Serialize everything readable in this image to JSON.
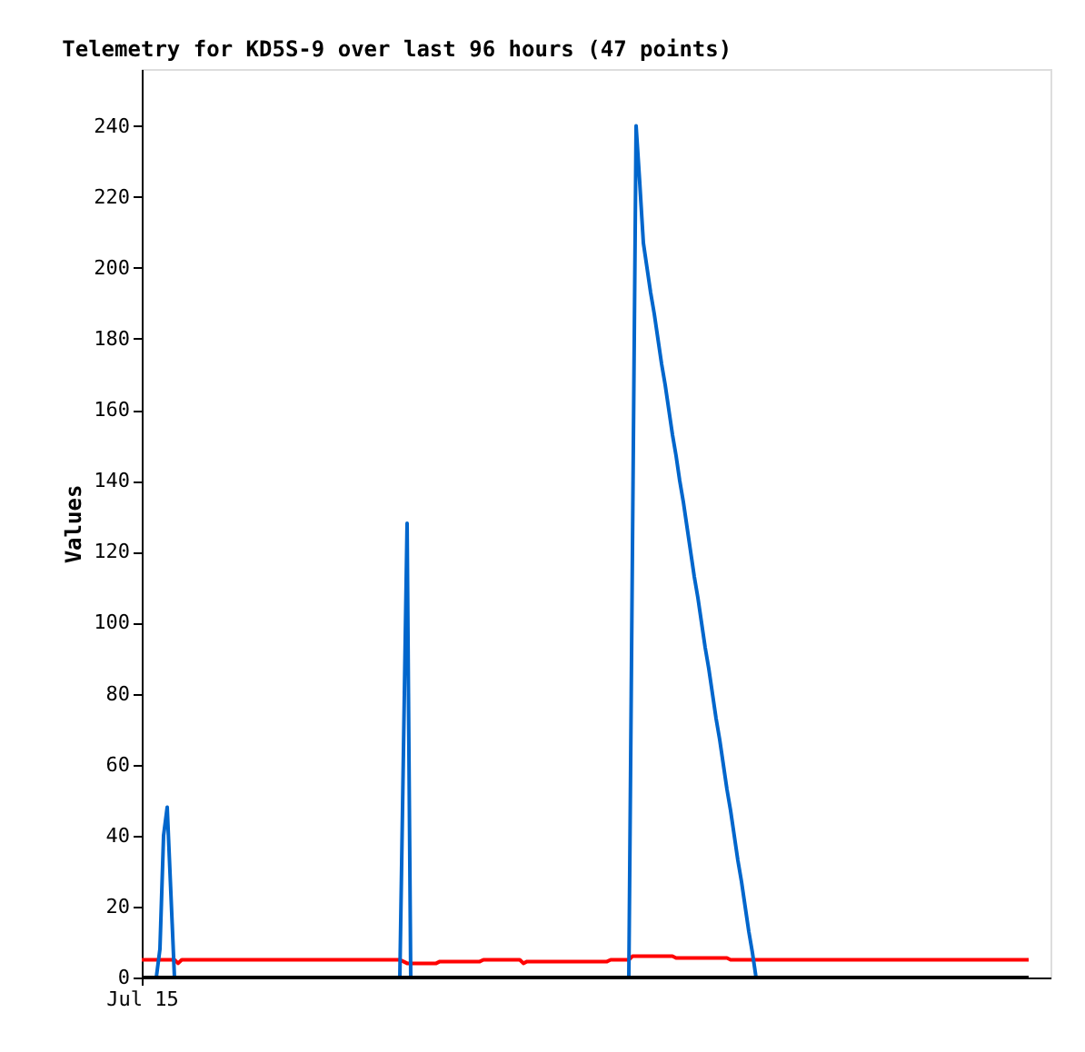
{
  "chart_data": {
    "type": "line",
    "title": "Telemetry for KD5S-9 over last 96 hours (47 points)",
    "ylabel": "Values",
    "categories": [
      "Jul 15",
      null,
      null,
      null,
      null,
      null,
      null,
      null,
      null,
      null,
      null,
      null,
      null,
      null,
      null,
      null,
      null,
      null,
      null,
      null,
      null,
      null,
      null,
      null,
      null,
      null,
      null,
      null,
      null,
      null,
      null,
      null,
      null,
      null,
      null,
      null,
      null,
      null,
      null,
      null,
      null,
      null,
      null,
      null,
      null,
      null,
      null,
      null,
      null,
      null,
      null,
      null,
      null,
      null,
      null,
      null,
      null,
      null,
      null,
      null,
      null,
      null,
      null,
      null,
      null,
      null,
      null,
      null,
      null,
      null,
      null,
      null,
      null,
      null,
      null,
      null,
      null,
      null,
      null,
      null,
      null,
      null,
      null,
      null,
      null,
      null,
      null,
      null,
      null,
      null,
      null,
      null,
      null,
      null,
      null,
      null,
      null,
      null,
      null,
      null,
      null,
      null,
      null,
      null,
      null,
      null,
      null,
      null,
      null,
      null,
      null,
      null,
      null,
      null,
      null,
      null,
      null,
      null,
      null,
      null,
      null,
      null,
      null,
      null,
      null,
      null,
      null,
      null,
      null,
      null,
      null,
      null,
      null,
      null,
      null,
      null,
      null,
      null,
      null,
      null,
      null,
      null,
      null,
      null,
      null,
      null,
      null,
      null,
      null,
      null,
      null,
      null,
      null,
      null,
      null,
      null,
      null,
      null,
      null,
      null,
      null,
      null,
      null,
      null,
      null,
      null,
      null,
      null,
      null,
      null,
      null,
      null,
      null,
      null,
      null,
      null,
      null,
      null,
      null,
      null,
      null,
      null,
      null,
      null,
      null,
      null,
      null,
      null,
      null,
      null,
      null,
      null,
      null,
      null,
      null,
      null,
      null,
      null,
      null,
      null,
      null,
      null,
      null,
      null,
      null,
      null,
      null,
      null,
      null,
      null,
      null,
      null,
      null,
      null,
      null,
      null,
      null,
      null,
      null,
      null,
      null,
      null,
      null,
      null,
      null,
      null,
      null,
      null,
      null,
      null,
      null,
      null,
      null,
      null,
      null,
      null,
      null,
      null,
      null,
      null,
      null,
      null,
      null,
      null,
      null,
      null,
      null,
      null,
      null,
      null,
      null
    ],
    "ylim": [
      0,
      256
    ],
    "yticks": [
      0,
      20,
      40,
      60,
      80,
      100,
      120,
      140,
      160,
      180,
      200,
      220,
      240
    ],
    "grid": false,
    "marker": "none",
    "line_style": "solid",
    "series": [
      {
        "color": "#000000",
        "values": [
          0,
          0,
          0,
          0,
          0,
          0,
          0,
          0,
          0,
          0,
          0,
          0,
          0,
          0,
          0,
          0,
          0,
          0,
          0,
          0,
          0,
          0,
          0,
          0,
          0,
          0,
          0,
          0,
          0,
          0,
          0,
          0,
          0,
          0,
          0,
          0,
          0,
          0,
          0,
          0,
          0,
          0,
          0,
          0,
          0,
          0,
          0,
          0,
          0,
          0,
          0,
          0,
          0,
          0,
          0,
          0,
          0,
          0,
          0,
          0,
          0,
          0,
          0,
          0,
          0,
          0,
          0,
          0,
          0,
          0,
          0,
          0,
          0,
          0,
          0,
          0,
          0,
          0,
          0,
          0,
          0,
          0,
          0,
          0,
          0,
          0,
          0,
          0,
          0,
          0,
          0,
          0,
          0,
          0,
          0,
          0,
          0,
          0,
          0,
          0,
          0,
          0,
          0,
          0,
          0,
          0,
          0,
          0,
          0,
          0,
          0,
          0,
          0,
          0,
          0,
          0,
          0,
          0,
          0,
          0,
          0,
          0,
          0,
          0,
          0,
          0,
          0,
          0,
          0,
          0,
          0,
          0,
          0,
          0,
          0,
          0,
          0,
          0,
          0,
          0,
          0,
          0,
          0,
          0,
          0,
          0,
          0,
          0,
          0,
          0,
          0,
          0,
          0,
          0,
          0,
          0,
          0,
          0,
          0,
          0,
          0,
          0,
          0,
          0,
          0,
          0,
          0,
          0,
          0,
          0,
          0,
          0,
          0,
          0,
          0,
          0,
          0,
          0,
          0,
          0,
          0,
          0,
          0,
          0,
          0,
          0,
          0,
          0,
          0,
          0,
          0,
          0,
          0,
          0,
          0,
          0,
          0,
          0,
          0,
          0,
          0,
          0,
          0,
          0,
          0,
          0,
          0,
          0,
          0,
          0,
          0,
          0,
          0,
          0,
          0,
          0,
          0,
          0,
          0,
          0,
          0,
          0,
          0,
          0,
          0,
          0,
          0,
          0,
          0,
          0,
          0,
          0,
          0,
          0,
          0,
          0,
          0,
          0,
          0,
          0,
          0,
          0,
          0,
          0,
          0,
          null,
          null,
          null,
          null,
          null,
          null
        ]
      },
      {
        "color": "#ff0000",
        "values": [
          5,
          5,
          5,
          5,
          5,
          5,
          5,
          5,
          5,
          5,
          4,
          5,
          5,
          5,
          5,
          5,
          5,
          5,
          5,
          5,
          5,
          5,
          5,
          5,
          5,
          5,
          5,
          5,
          5,
          5,
          5,
          5,
          5,
          5,
          5,
          5,
          5,
          5,
          5,
          5,
          5,
          5,
          5,
          5,
          5,
          5,
          5,
          5,
          5,
          5,
          5,
          5,
          5,
          5,
          5,
          5,
          5,
          5,
          5,
          5,
          5,
          5,
          5,
          5,
          5,
          5,
          5,
          5,
          5,
          5,
          5,
          5,
          4.5,
          4,
          4,
          4,
          4,
          4,
          4,
          4,
          4,
          4,
          4.5,
          4.5,
          4.5,
          4.5,
          4.5,
          4.5,
          4.5,
          4.5,
          4.5,
          4.5,
          4.5,
          4.5,
          5,
          5,
          5,
          5,
          5,
          5,
          5,
          5,
          5,
          5,
          5,
          4,
          4.5,
          4.5,
          4.5,
          4.5,
          4.5,
          4.5,
          4.5,
          4.5,
          4.5,
          4.5,
          4.5,
          4.5,
          4.5,
          4.5,
          4.5,
          4.5,
          4.5,
          4.5,
          4.5,
          4.5,
          4.5,
          4.5,
          4.5,
          5,
          5,
          5,
          5,
          5,
          5,
          6,
          6,
          6,
          6,
          6,
          6,
          6,
          6,
          6,
          6,
          6,
          6,
          5.5,
          5.5,
          5.5,
          5.5,
          5.5,
          5.5,
          5.5,
          5.5,
          5.5,
          5.5,
          5.5,
          5.5,
          5.5,
          5.5,
          5.5,
          5,
          5,
          5,
          5,
          5,
          5,
          5,
          5,
          5,
          5,
          5,
          5,
          5,
          5,
          5,
          5,
          5,
          5,
          5,
          5,
          5,
          5,
          5,
          5,
          5,
          5,
          5,
          5,
          5,
          5,
          5,
          5,
          5,
          5,
          5,
          5,
          5,
          5,
          5,
          5,
          5,
          5,
          5,
          5,
          5,
          5,
          5,
          5,
          5,
          5,
          5,
          5,
          5,
          5,
          5,
          5,
          5,
          5,
          5,
          5,
          5,
          5,
          5,
          5,
          5,
          5,
          5,
          5,
          5,
          5,
          5,
          5,
          5,
          5,
          5,
          5,
          5,
          5,
          5,
          5,
          5,
          5,
          5,
          null,
          null,
          null,
          null,
          null,
          null
        ]
      },
      {
        "color": "#0066cc",
        "values": [
          null,
          null,
          null,
          null,
          0,
          8,
          40,
          48,
          24,
          0,
          null,
          null,
          null,
          null,
          null,
          null,
          null,
          null,
          null,
          null,
          null,
          null,
          null,
          null,
          null,
          null,
          null,
          null,
          null,
          null,
          null,
          null,
          null,
          null,
          null,
          null,
          null,
          null,
          null,
          null,
          null,
          null,
          null,
          null,
          null,
          null,
          null,
          null,
          null,
          null,
          null,
          null,
          null,
          null,
          null,
          null,
          null,
          null,
          null,
          null,
          null,
          null,
          null,
          null,
          null,
          null,
          null,
          null,
          null,
          null,
          null,
          0,
          64,
          128,
          0,
          null,
          null,
          null,
          null,
          null,
          null,
          null,
          null,
          null,
          null,
          null,
          null,
          null,
          null,
          null,
          null,
          null,
          null,
          null,
          null,
          null,
          null,
          null,
          null,
          null,
          null,
          null,
          null,
          null,
          null,
          null,
          null,
          null,
          null,
          null,
          null,
          null,
          null,
          null,
          null,
          null,
          null,
          null,
          null,
          null,
          null,
          null,
          null,
          null,
          null,
          null,
          null,
          null,
          null,
          null,
          null,
          null,
          null,
          null,
          0,
          121,
          240,
          224,
          207,
          200,
          193,
          187,
          180,
          173,
          167,
          160,
          153,
          147,
          140,
          134,
          127,
          120,
          113,
          107,
          100,
          93,
          87,
          80,
          73,
          67,
          60,
          53,
          47,
          40,
          33,
          27,
          20,
          13,
          7,
          0,
          null,
          null,
          null,
          null,
          null,
          null,
          null,
          null,
          null,
          null,
          null,
          null,
          null,
          null,
          null,
          null,
          null,
          null,
          null,
          null,
          null,
          null,
          null,
          null,
          null,
          null,
          null,
          null,
          null,
          null,
          null,
          null,
          null,
          null,
          null,
          null,
          null,
          null,
          null,
          null,
          null,
          null,
          null,
          null,
          null,
          null,
          null,
          null,
          null,
          null,
          null,
          null,
          null,
          null,
          null,
          null,
          null,
          null,
          null,
          null,
          null,
          null,
          null,
          null,
          null,
          null,
          null,
          null,
          null,
          null,
          null,
          null,
          null,
          null,
          null,
          null,
          null,
          null,
          null,
          null,
          null
        ]
      }
    ]
  }
}
